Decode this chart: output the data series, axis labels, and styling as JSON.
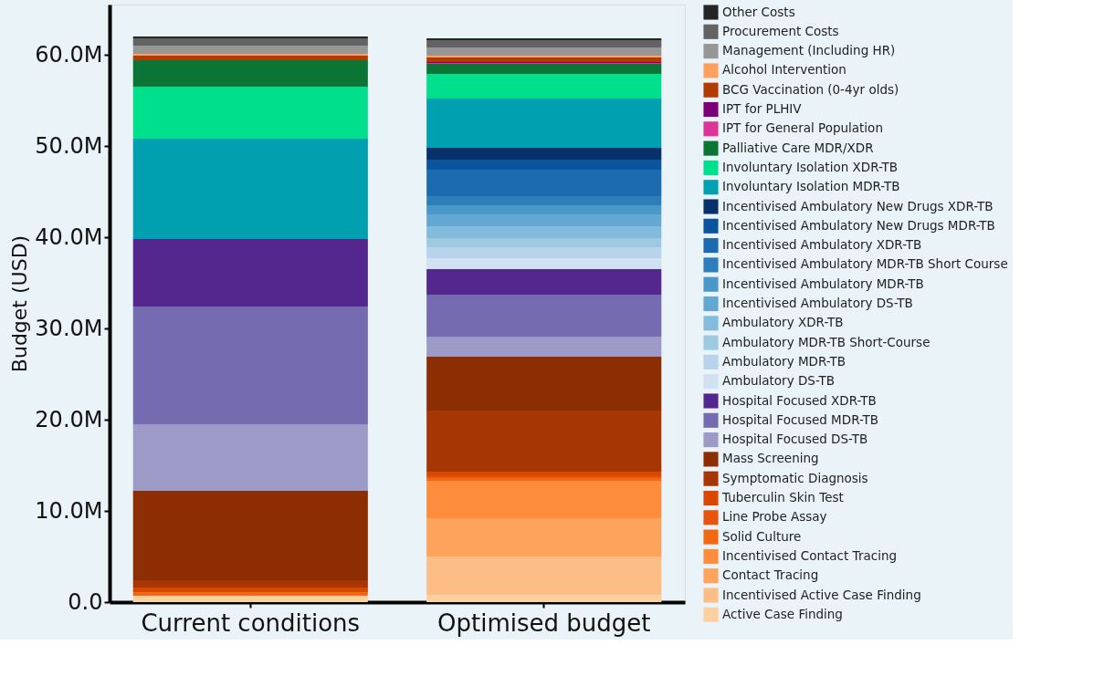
{
  "chart_data": {
    "type": "bar",
    "stacked": true,
    "ylabel": "Budget (USD)",
    "categories": [
      "Current conditions",
      "Optimised budget"
    ],
    "ylim": [
      0,
      65500000
    ],
    "yticks": [
      {
        "value": 0,
        "label": "0.0"
      },
      {
        "value": 10000000,
        "label": "10.0M"
      },
      {
        "value": 20000000,
        "label": "20.0M"
      },
      {
        "value": 30000000,
        "label": "30.0M"
      },
      {
        "value": 40000000,
        "label": "40.0M"
      },
      {
        "value": 50000000,
        "label": "50.0M"
      },
      {
        "value": 60000000,
        "label": "60.0M"
      }
    ],
    "grid": false,
    "legend": "right",
    "series": [
      {
        "name": "Active Case Finding",
        "color": "#fdd0a2",
        "values": [
          700000,
          800000
        ]
      },
      {
        "name": "Incentivised Active Case Finding",
        "color": "#fdbe85",
        "values": [
          null,
          4200000
        ]
      },
      {
        "name": "Contact Tracing",
        "color": "#fda35c",
        "values": [
          null,
          4200000
        ]
      },
      {
        "name": "Incentivised Contact Tracing",
        "color": "#fd8d3c",
        "values": [
          null,
          4100000
        ]
      },
      {
        "name": "Solid Culture",
        "color": "#f16913",
        "values": [
          400000,
          300000
        ]
      },
      {
        "name": "Line Probe Assay",
        "color": "#e6550d",
        "values": [
          null,
          200000
        ]
      },
      {
        "name": "Tuberculin Skin Test",
        "color": "#d94801",
        "values": [
          500000,
          500000
        ]
      },
      {
        "name": "Symptomatic Diagnosis",
        "color": "#a63603",
        "values": [
          800000,
          6700000
        ]
      },
      {
        "name": "Mass Screening",
        "color": "#8c2d04",
        "values": [
          9800000,
          5900000
        ]
      },
      {
        "name": "Hospital Focused DS-TB",
        "color": "#9e9ac8",
        "values": [
          7300000,
          2200000
        ]
      },
      {
        "name": "Hospital Focused MDR-TB",
        "color": "#756bb1",
        "values": [
          12900000,
          4600000
        ]
      },
      {
        "name": "Hospital Focused XDR-TB",
        "color": "#54278f",
        "values": [
          7400000,
          2800000
        ]
      },
      {
        "name": "Ambulatory DS-TB",
        "color": "#d0e1f2",
        "values": [
          null,
          1200000
        ]
      },
      {
        "name": "Ambulatory MDR-TB",
        "color": "#b7d4ea",
        "values": [
          null,
          1200000
        ]
      },
      {
        "name": "Ambulatory MDR-TB Short-Course",
        "color": "#9ecae1",
        "values": [
          null,
          1000000
        ]
      },
      {
        "name": "Ambulatory XDR-TB",
        "color": "#82bbdb",
        "values": [
          null,
          1300000
        ]
      },
      {
        "name": "Incentivised Ambulatory DS-TB",
        "color": "#63a8d3",
        "values": [
          null,
          1300000
        ]
      },
      {
        "name": "Incentivised Ambulatory MDR-TB",
        "color": "#4a98c9",
        "values": [
          null,
          1000000
        ]
      },
      {
        "name": "Incentivised Ambulatory MDR-TB Short Course",
        "color": "#2e7ebc",
        "values": [
          null,
          1000000
        ]
      },
      {
        "name": "Incentivised Ambulatory XDR-TB",
        "color": "#1c6aaf",
        "values": [
          null,
          2900000
        ]
      },
      {
        "name": "Incentivised Ambulatory New Drugs MDR-TB",
        "color": "#0b559f",
        "values": [
          null,
          1100000
        ]
      },
      {
        "name": "Incentivised Ambulatory New Drugs XDR-TB",
        "color": "#08306b",
        "values": [
          null,
          1300000
        ]
      },
      {
        "name": "Involuntary Isolation MDR-TB",
        "color": "#00a0b0",
        "values": [
          11000000,
          5400000
        ]
      },
      {
        "name": "Involuntary Isolation XDR-TB",
        "color": "#00e08c",
        "values": [
          5700000,
          2700000
        ]
      },
      {
        "name": "Palliative Care MDR/XDR",
        "color": "#0a7535",
        "values": [
          2900000,
          1100000
        ]
      },
      {
        "name": "IPT for General Population",
        "color": "#dd3497",
        "values": [
          null,
          100000
        ]
      },
      {
        "name": "IPT for PLHIV",
        "color": "#7a0177",
        "values": [
          null,
          100000
        ]
      },
      {
        "name": "BCG Vaccination (0-4yr olds)",
        "color": "#b23c00",
        "values": [
          500000,
          500000
        ]
      },
      {
        "name": "Alcohol Intervention",
        "color": "#fda060",
        "values": [
          200000,
          200000
        ]
      },
      {
        "name": "Management (Including HR)",
        "color": "#969696",
        "values": [
          900000,
          900000
        ]
      },
      {
        "name": "Procurement Costs",
        "color": "#636363",
        "values": [
          800000,
          800000
        ]
      },
      {
        "name": "Other Costs",
        "color": "#252525",
        "values": [
          200000,
          200000
        ]
      }
    ]
  }
}
